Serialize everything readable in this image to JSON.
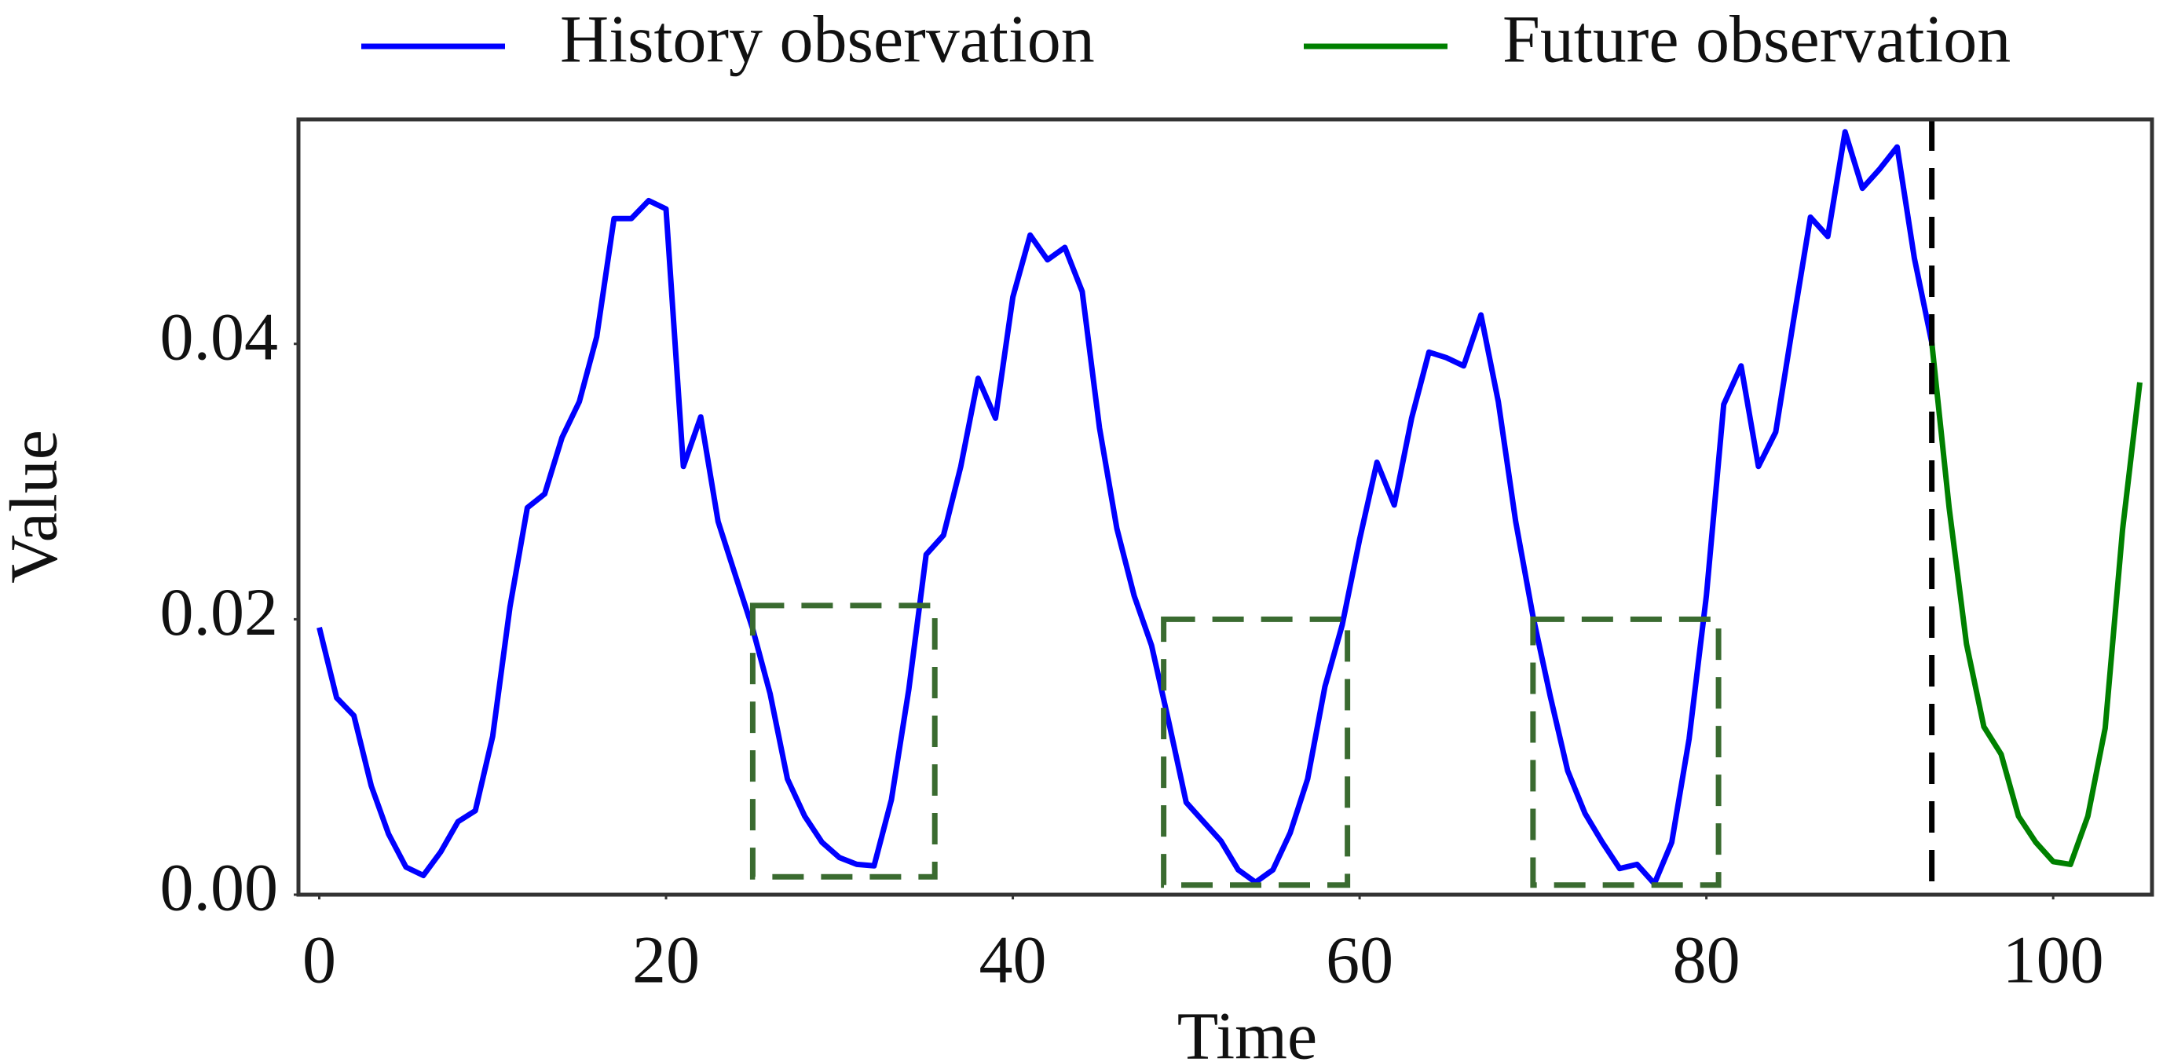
{
  "chart_data": {
    "type": "line",
    "xlabel": "Time",
    "ylabel": "Value",
    "xlim": [
      -1.2,
      105.7
    ],
    "ylim": [
      0,
      0.0563
    ],
    "xticks": [
      0,
      20,
      40,
      60,
      80,
      100
    ],
    "yticks": [
      {
        "value": 0,
        "label": "0.00"
      },
      {
        "value": 0.02,
        "label": "0.02"
      },
      {
        "value": 0.04,
        "label": "0.04"
      }
    ],
    "split_x": 93,
    "highlight_boxes": [
      {
        "x0": 25.0,
        "x1": 35.5,
        "y0": 0.0013,
        "y1": 0.021
      },
      {
        "x0": 48.7,
        "x1": 59.3,
        "y0": 0.0007,
        "y1": 0.02
      },
      {
        "x0": 70.0,
        "x1": 80.7,
        "y0": 0.0007,
        "y1": 0.02
      }
    ],
    "series": [
      {
        "name": "History observation",
        "color": "#0000ff",
        "x": [
          0,
          1,
          2,
          3,
          4,
          5,
          6,
          7,
          8,
          9,
          10,
          11,
          12,
          13,
          14,
          15,
          16,
          17,
          18,
          19,
          20,
          21,
          22,
          23,
          24,
          25,
          26,
          27,
          28,
          29,
          30,
          31,
          32,
          33,
          34,
          35,
          36,
          37,
          38,
          39,
          40,
          41,
          42,
          43,
          44,
          45,
          46,
          47,
          48,
          49,
          50,
          51,
          52,
          53,
          54,
          55,
          56,
          57,
          58,
          59,
          60,
          61,
          62,
          63,
          64,
          65,
          66,
          67,
          68,
          69,
          70,
          71,
          72,
          73,
          74,
          75,
          76,
          77,
          78,
          79,
          80,
          81,
          82,
          83,
          84,
          85,
          86,
          87,
          88,
          89,
          90,
          91,
          92,
          93
        ],
        "values": [
          0.0194,
          0.0143,
          0.013,
          0.0079,
          0.0044,
          0.002,
          0.0014,
          0.0031,
          0.0053,
          0.0061,
          0.0115,
          0.0209,
          0.0281,
          0.0291,
          0.0332,
          0.0358,
          0.0405,
          0.0491,
          0.0491,
          0.0504,
          0.0498,
          0.0311,
          0.0347,
          0.0271,
          0.0232,
          0.0193,
          0.0146,
          0.0084,
          0.0057,
          0.0038,
          0.0027,
          0.0022,
          0.0021,
          0.0069,
          0.0149,
          0.0247,
          0.0261,
          0.0311,
          0.0375,
          0.0346,
          0.0434,
          0.0479,
          0.0461,
          0.047,
          0.0438,
          0.0339,
          0.0266,
          0.0217,
          0.0181,
          0.0125,
          0.0067,
          0.0053,
          0.0039,
          0.0018,
          0.0009,
          0.0018,
          0.0045,
          0.0084,
          0.0151,
          0.0196,
          0.0258,
          0.0314,
          0.0283,
          0.0346,
          0.0394,
          0.039,
          0.0384,
          0.0421,
          0.0358,
          0.0271,
          0.0202,
          0.0144,
          0.009,
          0.0059,
          0.0038,
          0.0019,
          0.0022,
          0.0008,
          0.0038,
          0.0113,
          0.0217,
          0.0356,
          0.0384,
          0.0311,
          0.0336,
          0.0415,
          0.0492,
          0.0478,
          0.0554,
          0.0513,
          0.0527,
          0.0543,
          0.0462,
          0.0401
        ]
      },
      {
        "name": "Future observation",
        "color": "#008000",
        "x": [
          93,
          94,
          95,
          96,
          97,
          98,
          99,
          100,
          101,
          102,
          103,
          104,
          105
        ],
        "values": [
          0.0401,
          0.0281,
          0.0182,
          0.0122,
          0.0102,
          0.0057,
          0.0038,
          0.0024,
          0.0022,
          0.0057,
          0.0121,
          0.0265,
          0.0372
        ]
      }
    ]
  }
}
